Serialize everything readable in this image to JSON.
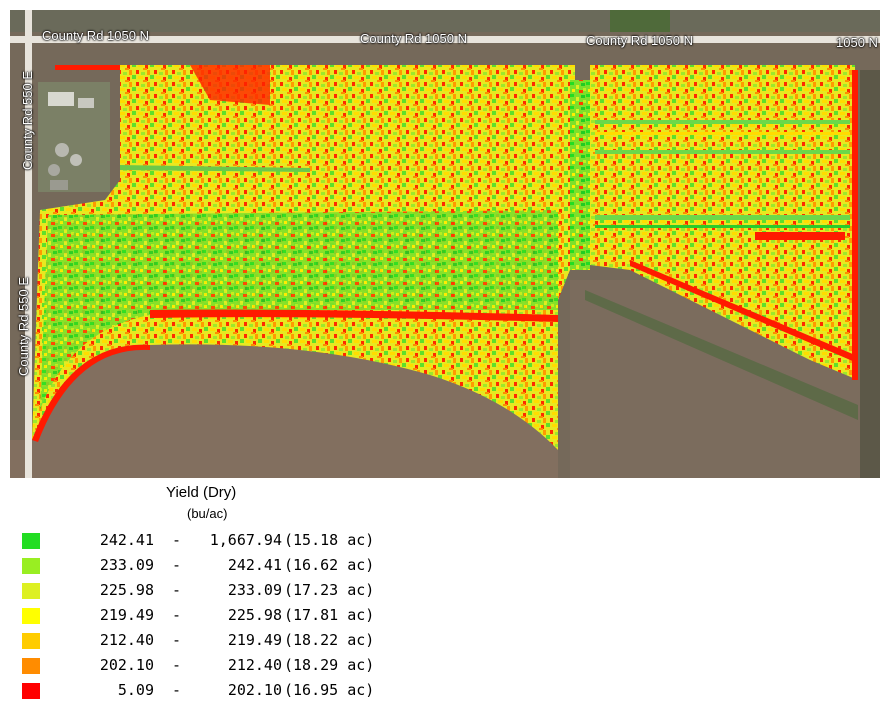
{
  "map": {
    "roads": {
      "north_labels": [
        "County Rd 1050 N",
        "County Rd 1050 N",
        "County Rd 1050 N",
        "1050 N"
      ],
      "west_labels": [
        "County Rd 550 E",
        "County Rd 550 E"
      ]
    },
    "colors": {
      "background_field": "#6f6453",
      "road": "#e8e4dc"
    }
  },
  "legend": {
    "title": "Yield (Dry)",
    "units": "(bu/ac)",
    "classes": [
      {
        "low": "242.41",
        "high": "1,667.94",
        "area": "(15.18 ac)",
        "color": "#22dd22"
      },
      {
        "low": "233.09",
        "high": "242.41",
        "area": "(16.62 ac)",
        "color": "#99ee22"
      },
      {
        "low": "225.98",
        "high": "233.09",
        "area": "(17.23 ac)",
        "color": "#ddf022"
      },
      {
        "low": "219.49",
        "high": "225.98",
        "area": "(17.81 ac)",
        "color": "#ffff00"
      },
      {
        "low": "212.40",
        "high": "219.49",
        "area": "(18.22 ac)",
        "color": "#ffcc00"
      },
      {
        "low": "202.10",
        "high": "212.40",
        "area": "(18.29 ac)",
        "color": "#ff8c00"
      },
      {
        "low": "5.09",
        "high": "202.10",
        "area": "(16.95 ac)",
        "color": "#ff0000"
      }
    ]
  }
}
